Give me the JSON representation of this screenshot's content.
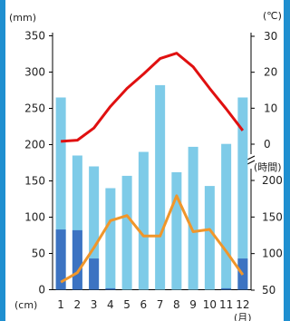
{
  "chart_data": {
    "type": "bar",
    "categories": [
      "1",
      "2",
      "3",
      "4",
      "5",
      "6",
      "7",
      "8",
      "9",
      "10",
      "11",
      "12"
    ],
    "series": [
      {
        "values": [
          265,
          185,
          170,
          140,
          157,
          190,
          282,
          162,
          197,
          143,
          201,
          265
        ]
      },
      {
        "values": [
          83,
          82,
          43,
          2,
          0,
          0,
          0,
          0,
          0,
          0,
          2,
          43
        ]
      },
      {
        "values": [
          0.8,
          1.1,
          4.5,
          10.5,
          15.5,
          19.5,
          23.8,
          25.3,
          21.5,
          15.5,
          9.8,
          3.8
        ]
      },
      {
        "values": [
          61,
          74,
          108,
          145,
          152,
          124,
          124,
          179,
          130,
          133,
          103,
          71
        ]
      }
    ],
    "left_axis": {
      "unit": "(mm)",
      "ticks": [
        "0",
        "50",
        "100",
        "150",
        "200",
        "250",
        "300",
        "350"
      ],
      "ylim": [
        0,
        350
      ]
    },
    "snow_axis": {
      "unit": "(cm)"
    },
    "right_axis_temp": {
      "unit": "(℃)",
      "ticks": [
        "0",
        "10",
        "20",
        "30"
      ],
      "ylim": [
        0,
        30
      ]
    },
    "right_axis_sun": {
      "unit": "(時間)",
      "ticks": [
        "50",
        "100",
        "150",
        "200"
      ],
      "ylim": [
        50,
        200
      ]
    },
    "x_unit": "(月)",
    "colors": {
      "precip": "#7ecbe8",
      "snow": "#3c73c2",
      "temp": "#e01010",
      "sun": "#f0962a"
    }
  }
}
